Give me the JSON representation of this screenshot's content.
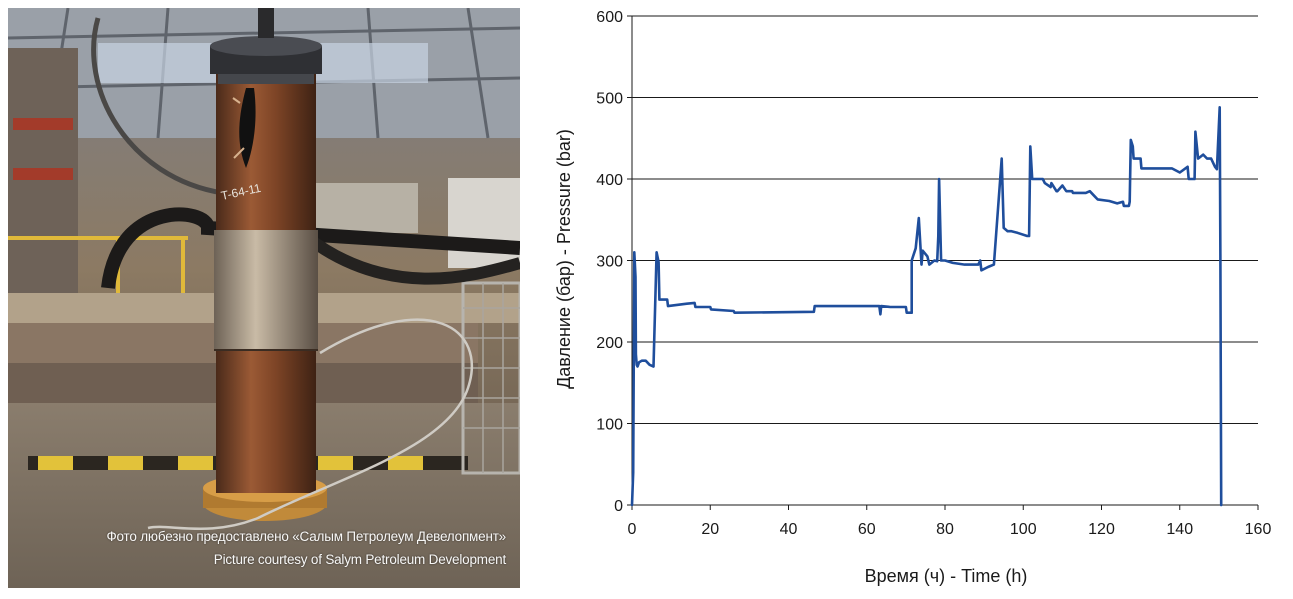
{
  "photo": {
    "caption_ru": "Фото любезно предоставлено «Салым Петролеум Девелопмент»",
    "caption_en": "Picture courtesy of Salym Petroleum Development"
  },
  "chart_data": {
    "type": "line",
    "title": "",
    "xlabel": "Время (ч) - Time (h)",
    "ylabel": "Давление (бар) - Pressure (bar)",
    "xlim": [
      0,
      160
    ],
    "ylim": [
      0,
      600
    ],
    "xticks": [
      "0",
      "20",
      "40",
      "60",
      "80",
      "100",
      "120",
      "140",
      "160"
    ],
    "yticks": [
      "0",
      "100",
      "200",
      "300",
      "400",
      "500",
      "600"
    ],
    "grid": "horizontal",
    "line_color": "#1f4e9c",
    "series": [
      {
        "x": [
          0,
          0.3,
          0.6,
          0.9,
          1.0,
          1.2,
          1.4,
          1.8,
          2.5,
          3.5,
          4.5,
          5.5,
          6.3,
          6.8,
          7.0,
          9.0,
          9.2,
          14,
          16,
          16.2,
          19.5,
          20,
          20.2,
          26,
          26.2,
          46.5,
          46.7,
          63,
          63.2,
          63.5,
          63.7,
          66,
          70,
          70.2,
          71.5,
          71.5,
          72.5,
          73.3,
          74,
          74.3,
          75.5,
          76,
          77.3,
          78,
          78.3,
          78.5,
          79,
          80,
          82,
          85,
          88.5,
          89,
          89.3,
          91,
          92.5,
          94.5,
          95,
          95.5,
          96,
          97,
          98.5,
          101,
          101.5,
          101.8,
          102.3,
          103,
          105,
          105.5,
          107,
          107.2,
          108.5,
          108.7,
          110,
          111,
          112.5,
          112.7,
          116,
          117,
          118,
          119,
          122,
          124,
          125.5,
          125.7,
          127,
          127.2,
          127.5,
          128,
          128.2,
          130,
          130.2,
          136,
          138,
          140,
          142,
          142.3,
          143.5,
          143.8,
          144,
          144.7,
          146,
          147,
          148,
          149,
          149.5,
          150.2,
          150.4,
          150.6
        ],
        "y": [
          0,
          40,
          310,
          280,
          185,
          172,
          170,
          175,
          177,
          177,
          172,
          170,
          310,
          298,
          252,
          252,
          244,
          247,
          248,
          243,
          243,
          243,
          240,
          238,
          236,
          237,
          244,
          244,
          244,
          234,
          244,
          243,
          243,
          236,
          236,
          300,
          315,
          352,
          295,
          312,
          305,
          295,
          300,
          299,
          330,
          400,
          300,
          300,
          297,
          295,
          295,
          300,
          288,
          292,
          295,
          425,
          340,
          338,
          336,
          336,
          334,
          330,
          330,
          440,
          400,
          400,
          400,
          395,
          390,
          395,
          385,
          385,
          392,
          385,
          385,
          383,
          383,
          385,
          380,
          375,
          373,
          370,
          372,
          367,
          367,
          372,
          448,
          440,
          425,
          425,
          413,
          413,
          413,
          408,
          415,
          400,
          400,
          400,
          458,
          425,
          430,
          425,
          425,
          415,
          412,
          488,
          300,
          0
        ]
      }
    ]
  }
}
